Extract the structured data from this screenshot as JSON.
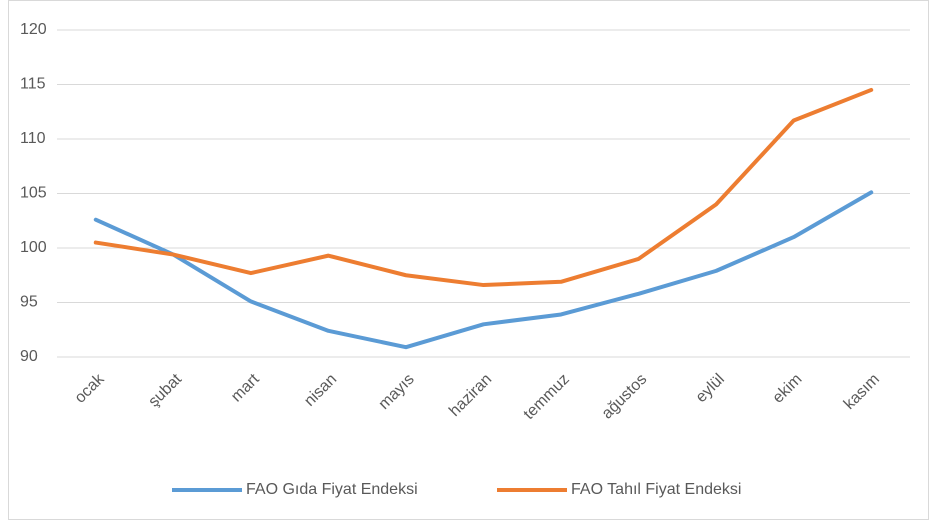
{
  "chart_data": {
    "type": "line",
    "categories": [
      "ocak",
      "şubat",
      "mart",
      "nisan",
      "mayıs",
      "haziran",
      "temmuz",
      "ağustos",
      "eylül",
      "ekim",
      "kasım"
    ],
    "series": [
      {
        "name": "FAO Gıda Fiyat Endeksi",
        "color": "#5b9bd5",
        "values": [
          102.6,
          99.4,
          95.1,
          92.4,
          90.9,
          93.0,
          93.9,
          95.8,
          97.9,
          101.0,
          105.1
        ]
      },
      {
        "name": "FAO Tahıl Fiyat Endeksi",
        "color": "#ed7d31",
        "values": [
          100.5,
          99.4,
          97.7,
          99.3,
          97.5,
          96.6,
          96.9,
          99.0,
          104.0,
          111.7,
          114.5
        ]
      }
    ],
    "ylim": [
      90,
      120
    ],
    "yticks": [
      90,
      95,
      100,
      105,
      110,
      115,
      120
    ],
    "grid": true,
    "legend": "bottom"
  }
}
